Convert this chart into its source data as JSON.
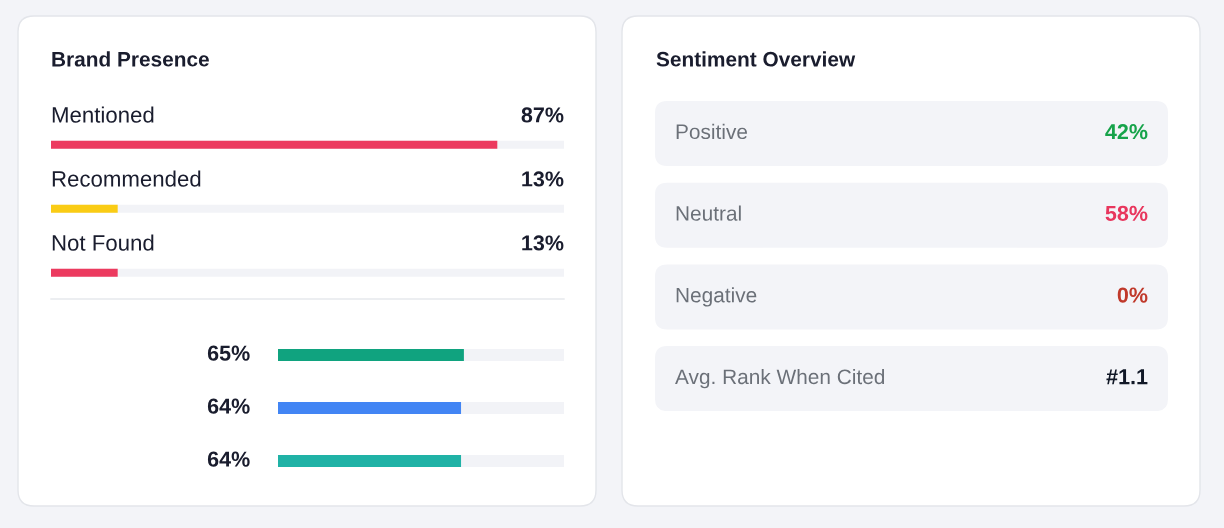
{
  "chart_data": [
    {
      "type": "bar",
      "orientation": "horizontal",
      "title": "Brand Presence",
      "categories": [
        "Mentioned",
        "Recommended",
        "Not Found"
      ],
      "values": [
        87,
        13,
        13
      ],
      "value_labels": [
        "87%",
        "13%",
        "13%"
      ],
      "colors": [
        "#ec3a5f",
        "#facc15",
        "#ec3a5f"
      ],
      "xlim": [
        0,
        100
      ],
      "tick_labels": false
    },
    {
      "type": "bar",
      "orientation": "horizontal",
      "categories": [
        null,
        null,
        null
      ],
      "values": [
        65,
        64,
        64
      ],
      "value_labels": [
        "65%",
        "64%",
        "64%"
      ],
      "colors": [
        "#10a37f",
        "#4285f4",
        "#20b2a6"
      ],
      "xlim": [
        0,
        100
      ],
      "tick_labels": false
    },
    {
      "type": "other",
      "title": "Sentiment Overview",
      "categories": [
        "Positive",
        "Neutral",
        "Negative",
        "Avg. Rank When Cited"
      ],
      "value_labels": [
        "42%",
        "58%",
        "0%",
        "#1.1"
      ],
      "colors": [
        "#16a34a",
        "#e8365d",
        "#c0392b",
        "#111827"
      ]
    }
  ]
}
